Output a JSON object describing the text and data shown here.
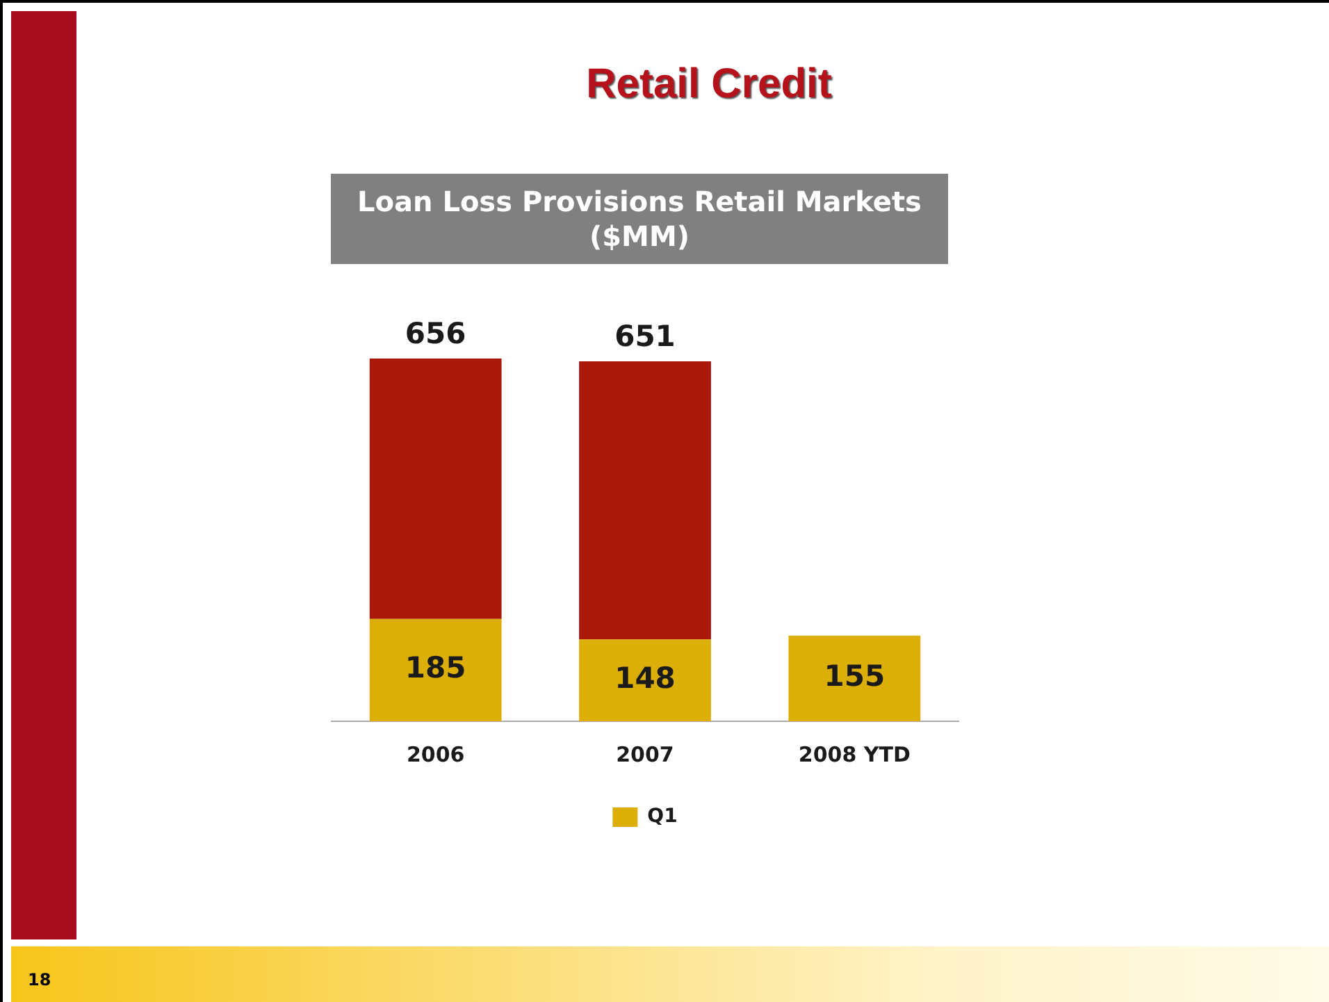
{
  "chart_data": {
    "type": "bar",
    "title": "Retail Credit",
    "subtitle": "Loan Loss Provisions Retail Markets ($MM)",
    "categories": [
      "2006",
      "2007",
      "2008 YTD"
    ],
    "stacked": true,
    "legend": "bottom",
    "grid": false,
    "series": [
      {
        "name": "Q1",
        "color": "#dcae08",
        "values": [
          185,
          148,
          155
        ],
        "value_labels": [
          "185",
          "148",
          "155"
        ]
      },
      {
        "color": "#a8190c",
        "values": [
          471,
          503,
          null
        ]
      }
    ],
    "totals": [
      "656",
      "651",
      null
    ],
    "annotations": [
      "18"
    ]
  }
}
